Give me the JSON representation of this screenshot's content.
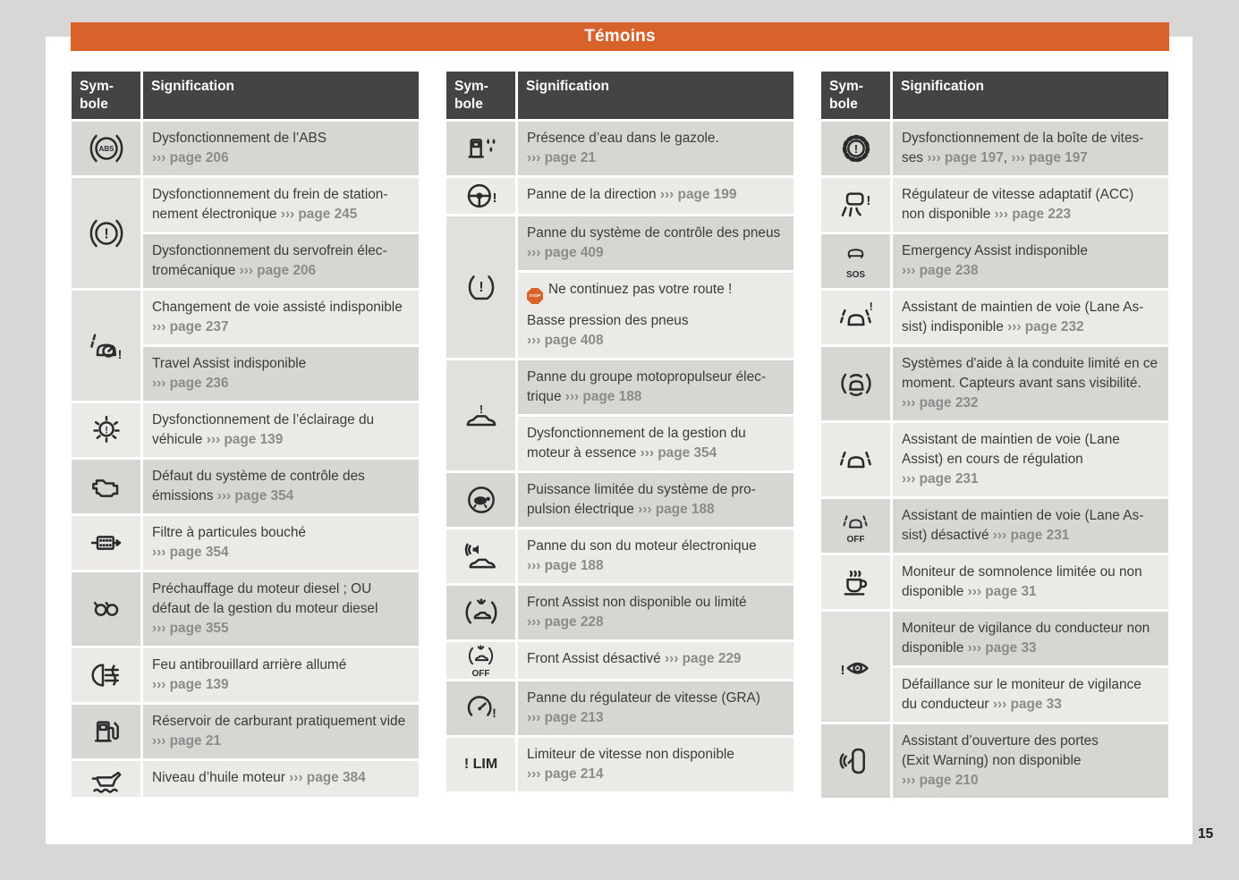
{
  "page": {
    "title": "Témoins",
    "number": "15"
  },
  "colors": {
    "accent_orange": "#d7622a",
    "header_gray": "#454443",
    "row_dark": "#d7d6d3",
    "row_light": "#eceae7",
    "ref_gray": "#8c8b89"
  },
  "table_header": {
    "symbol": "Sym-bole",
    "signification": "Signification"
  },
  "tables": [
    {
      "groups": [
        {
          "icon": "abs-warning",
          "rows": [
            [
              {
                "t": "Dysfonctionnement de l’ABS"
              },
              {
                "br": 1
              },
              {
                "r": "››› page 206"
              }
            ]
          ]
        },
        {
          "icon": "brake-warning",
          "rows": [
            [
              {
                "t": "Dysfonctionnement du frein de station­nement électronique "
              },
              {
                "r": "››› page 245"
              }
            ],
            [
              {
                "t": "Dysfonctionnement du servofrein élec­tromécanique "
              },
              {
                "r": "››› page 206"
              }
            ]
          ]
        },
        {
          "icon": "lane-change-assist",
          "rows": [
            [
              {
                "t": "Changement de voie assisté indisponi­ble "
              },
              {
                "r": "››› page 237"
              }
            ],
            [
              {
                "t": "Travel Assist indisponible"
              },
              {
                "br": 1
              },
              {
                "r": "››› page 236"
              }
            ]
          ]
        },
        {
          "icon": "lighting-fault",
          "rows": [
            [
              {
                "t": "Dysfonctionnement de l’éclairage du véhicule "
              },
              {
                "r": "››› page 139"
              }
            ]
          ]
        },
        {
          "icon": "engine-emissions",
          "rows": [
            [
              {
                "t": "Défaut du système de contrôle des émissions "
              },
              {
                "r": "››› page 354"
              }
            ]
          ]
        },
        {
          "icon": "particulate-filter",
          "rows": [
            [
              {
                "t": "Filtre à particules bouché"
              },
              {
                "br": 1
              },
              {
                "r": "››› page 354"
              }
            ]
          ]
        },
        {
          "icon": "glow-plug",
          "rows": [
            [
              {
                "t": "Préchauffage du moteur diesel ; OU défaut de la gestion du moteur diesel"
              },
              {
                "br": 1
              },
              {
                "r": "››› page 355"
              }
            ]
          ]
        },
        {
          "icon": "rear-fog-light",
          "rows": [
            [
              {
                "t": "Feu antibrouillard arrière allumé"
              },
              {
                "br": 1
              },
              {
                "r": "››› page 139"
              }
            ]
          ]
        },
        {
          "icon": "fuel-reserve",
          "rows": [
            [
              {
                "t": "Réservoir de carburant pratiquement vide "
              },
              {
                "r": "››› page 21"
              }
            ]
          ]
        },
        {
          "icon": "engine-oil",
          "rows": [
            [
              {
                "t": "Niveau d’huile moteur "
              },
              {
                "r": "››› page 384"
              }
            ]
          ]
        }
      ]
    },
    {
      "groups": [
        {
          "icon": "water-in-fuel",
          "rows": [
            [
              {
                "t": "Présence d’eau dans le gazole."
              },
              {
                "br": 1
              },
              {
                "r": "››› page 21"
              }
            ]
          ]
        },
        {
          "icon": "steering-fault",
          "rows": [
            [
              {
                "t": "Panne de la direction "
              },
              {
                "r": "››› page 199"
              }
            ]
          ]
        },
        {
          "icon": "tyre-pressure",
          "rows": [
            [
              {
                "t": "Panne du système de contrôle des pneus "
              },
              {
                "r": "››› page 409"
              }
            ],
            [
              {
                "stop": "STOP"
              },
              {
                "t": "Ne continuez pas votre route !"
              },
              {
                "gap": 1
              },
              {
                "t": "Basse pression des pneus"
              },
              {
                "br": 1
              },
              {
                "r": "››› page 408"
              }
            ]
          ]
        },
        {
          "icon": "ev-drive-fault",
          "rows": [
            [
              {
                "t": "Panne du groupe motopropulseur élec­trique "
              },
              {
                "r": "››› page 188"
              }
            ],
            [
              {
                "t": "Dysfonctionnement de la gestion du moteur à essence "
              },
              {
                "r": "››› page 354"
              }
            ]
          ]
        },
        {
          "icon": "power-limited",
          "rows": [
            [
              {
                "t": "Puissance limitée du système de pro­pulsion électrique "
              },
              {
                "r": "››› page 188"
              }
            ]
          ]
        },
        {
          "icon": "e-sound-fault",
          "rows": [
            [
              {
                "t": "Panne du son du moteur électronique"
              },
              {
                "br": 1
              },
              {
                "r": "››› page 188"
              }
            ]
          ]
        },
        {
          "icon": "front-assist",
          "rows": [
            [
              {
                "t": "Front Assist non disponible ou limité"
              },
              {
                "br": 1
              },
              {
                "r": "››› page 228"
              }
            ]
          ]
        },
        {
          "icon": "front-assist-off",
          "icon_label": "OFF",
          "rows": [
            [
              {
                "t": "Front Assist désactivé "
              },
              {
                "r": "››› page 229"
              }
            ]
          ]
        },
        {
          "icon": "cruise-control-fault",
          "rows": [
            [
              {
                "t": "Panne du régulateur de vitesse (GRA)"
              },
              {
                "br": 1
              },
              {
                "r": "››› page 213"
              }
            ]
          ]
        },
        {
          "icon": "speed-limiter",
          "icon_text": "! LIM",
          "rows": [
            [
              {
                "t": "Limiteur de vitesse non disponible"
              },
              {
                "br": 1
              },
              {
                "r": "››› page 214"
              }
            ]
          ]
        }
      ]
    },
    {
      "groups": [
        {
          "icon": "gearbox-fault",
          "rows": [
            [
              {
                "t": "Dysfonctionnement de la boîte de vites­ses "
              },
              {
                "r": "››› page 197"
              },
              {
                "t": ", "
              },
              {
                "r": "››› page 197"
              }
            ]
          ]
        },
        {
          "icon": "acc-unavailable",
          "rows": [
            [
              {
                "t": "Régulateur de vitesse adaptatif (ACC) non disponible "
              },
              {
                "r": "››› page 223"
              }
            ]
          ]
        },
        {
          "icon": "emergency-assist",
          "icon_label": "SOS",
          "rows": [
            [
              {
                "t": "Emergency Assist indisponible"
              },
              {
                "br": 1
              },
              {
                "r": "››› page 238"
              }
            ]
          ]
        },
        {
          "icon": "lane-assist-unavailable",
          "rows": [
            [
              {
                "t": "Assistant de maintien de voie (Lane As­sist) indisponible "
              },
              {
                "r": "››› page 232"
              }
            ]
          ]
        },
        {
          "icon": "assist-sensors-limited",
          "rows": [
            [
              {
                "t": "Systèmes d'aide à la conduite limité en ce moment. Capteurs avant sans visibi­lité. "
              },
              {
                "r": "››› page 232"
              }
            ]
          ]
        },
        {
          "icon": "lane-assist-active",
          "rows": [
            [
              {
                "t": "Assistant de maintien de voie (Lane Assist) en cours de régulation"
              },
              {
                "br": 1
              },
              {
                "r": "››› page 231"
              }
            ]
          ]
        },
        {
          "icon": "lane-assist-off",
          "icon_label": "OFF",
          "rows": [
            [
              {
                "t": "Assistant de maintien de voie (Lane As­sist) désactivé "
              },
              {
                "r": "››› page 231"
              }
            ]
          ]
        },
        {
          "icon": "drowsiness-monitor",
          "rows": [
            [
              {
                "t": "Moniteur de somnolence limitée ou non disponible "
              },
              {
                "r": "››› page 31"
              }
            ]
          ]
        },
        {
          "icon": "driver-vigilance",
          "rows": [
            [
              {
                "t": "Moniteur de vigilance du conducteur non disponible "
              },
              {
                "r": "››› page 33"
              }
            ],
            [
              {
                "t": "Défaillance sur le moniteur de vigilance du conducteur "
              },
              {
                "r": "››› page 33"
              }
            ]
          ]
        },
        {
          "icon": "exit-warning",
          "rows": [
            [
              {
                "t": "Assistant d’ouverture des portes"
              },
              {
                "br": 1
              },
              {
                "t": "(Exit Warning) non disponible"
              },
              {
                "br": 1
              },
              {
                "r": "››› page 210"
              }
            ]
          ]
        }
      ]
    }
  ]
}
